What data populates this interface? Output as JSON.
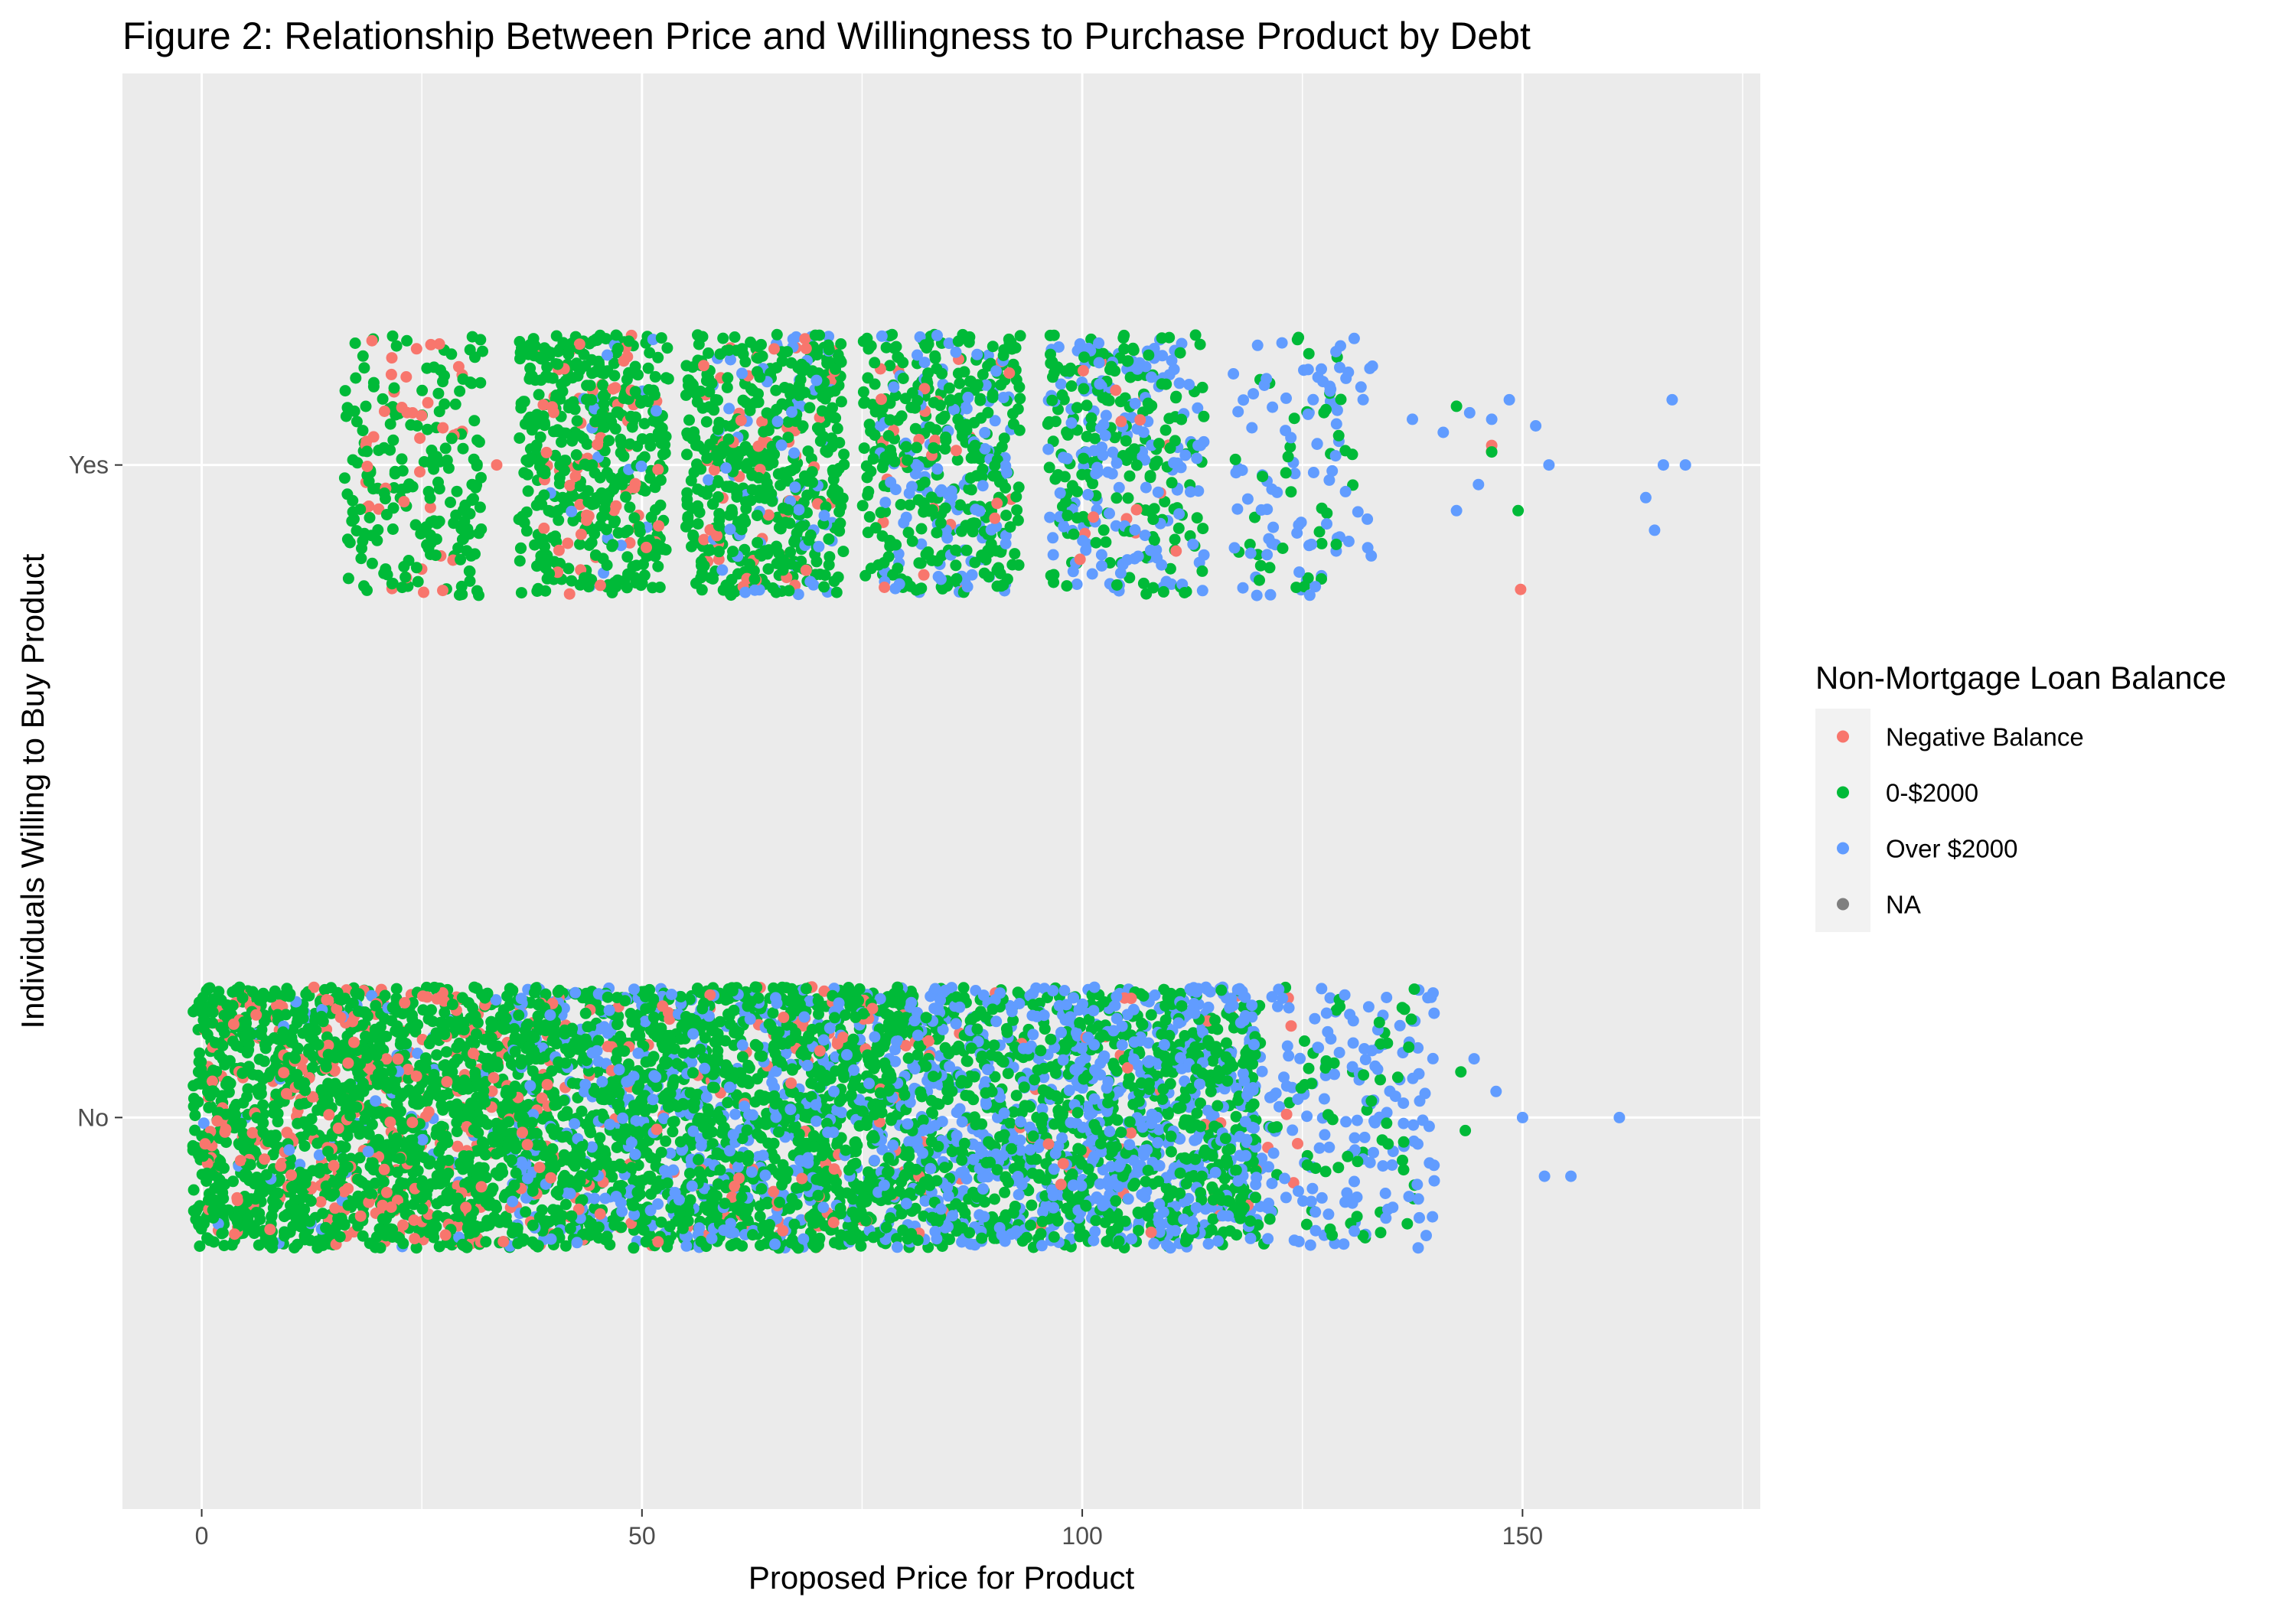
{
  "chart_data": {
    "type": "scatter",
    "title": "Figure 2: Relationship Between Price and Willingness to Purchase Product by Debt",
    "xlabel": "Proposed Price for Product",
    "ylabel": "Individuals Willing to Buy Product",
    "x_ticks": [
      "0",
      "50",
      "100",
      "150"
    ],
    "x_tick_values": [
      0,
      50,
      100,
      150
    ],
    "xlim": [
      -9,
      177
    ],
    "y_categories": [
      "No",
      "Yes"
    ],
    "grid": true,
    "jitter": 0.2,
    "legend": {
      "title": "Non-Mortgage Loan Balance",
      "placement": "right",
      "entries": [
        "Negative Balance",
        "0-$2000",
        "Over $2000",
        "NA"
      ]
    },
    "colors": {
      "Negative Balance": "#F8766D",
      "0-$2000": "#00BA38",
      "Over $2000": "#619CFF",
      "NA": "#7F7F7F",
      "panel": "#EBEBEB",
      "grid": "#FFFFFF"
    },
    "series": [
      {
        "name": "Negative Balance",
        "color": "#F8766D",
        "groups": [
          {
            "y": "No",
            "xmin": 0,
            "xmax": 40,
            "n": 320
          },
          {
            "y": "No",
            "xmin": 40,
            "xmax": 80,
            "n": 120
          },
          {
            "y": "No",
            "xmin": 80,
            "xmax": 125,
            "n": 55
          },
          {
            "y": "Yes",
            "xmin": 18,
            "xmax": 30,
            "n": 40
          },
          {
            "y": "Yes",
            "xmin": 38,
            "xmax": 52,
            "n": 70
          },
          {
            "y": "Yes",
            "xmin": 57,
            "xmax": 72,
            "n": 55
          },
          {
            "y": "Yes",
            "xmin": 77,
            "xmax": 92,
            "n": 30
          },
          {
            "y": "Yes",
            "xmin": 97,
            "xmax": 112,
            "n": 15
          },
          {
            "y": "Yes",
            "xmin": 140,
            "xmax": 150,
            "n": 2
          }
        ],
        "points": [
          {
            "x": 33.5,
            "y": "Yes",
            "dy": 0.0
          },
          {
            "x": 146.5,
            "y": "Yes",
            "dy": 0.03
          },
          {
            "x": 124,
            "y": "No",
            "dy": -0.1
          }
        ]
      },
      {
        "name": "0-$2000",
        "color": "#00BA38",
        "groups": [
          {
            "y": "No",
            "xmin": -1,
            "xmax": 40,
            "n": 1500
          },
          {
            "y": "No",
            "xmin": 40,
            "xmax": 80,
            "n": 1300
          },
          {
            "y": "No",
            "xmin": 80,
            "xmax": 120,
            "n": 900
          },
          {
            "y": "No",
            "xmin": 118,
            "xmax": 138,
            "n": 70
          },
          {
            "y": "Yes",
            "xmin": 16,
            "xmax": 32,
            "n": 190
          },
          {
            "y": "Yes",
            "xmin": 36,
            "xmax": 53,
            "n": 420
          },
          {
            "y": "Yes",
            "xmin": 55,
            "xmax": 73,
            "n": 440
          },
          {
            "y": "Yes",
            "xmin": 75,
            "xmax": 93,
            "n": 340
          },
          {
            "y": "Yes",
            "xmin": 96,
            "xmax": 114,
            "n": 200
          },
          {
            "y": "Yes",
            "xmin": 117,
            "xmax": 131,
            "n": 40
          }
        ],
        "points": [
          {
            "x": 142.5,
            "y": "Yes",
            "dy": 0.09
          },
          {
            "x": 146.5,
            "y": "Yes",
            "dy": 0.02
          },
          {
            "x": 149.5,
            "y": "Yes",
            "dy": -0.07
          },
          {
            "x": 143.5,
            "y": "No",
            "dy": -0.02
          },
          {
            "x": 143.0,
            "y": "No",
            "dy": 0.07
          },
          {
            "x": 136.5,
            "y": "No",
            "dy": -0.08
          }
        ]
      },
      {
        "name": "Over $2000",
        "color": "#619CFF",
        "groups": [
          {
            "y": "No",
            "xmin": 0,
            "xmax": 35,
            "n": 60
          },
          {
            "y": "No",
            "xmin": 35,
            "xmax": 80,
            "n": 520
          },
          {
            "y": "No",
            "xmin": 80,
            "xmax": 120,
            "n": 750
          },
          {
            "y": "No",
            "xmin": 118,
            "xmax": 140,
            "n": 170
          },
          {
            "y": "Yes",
            "xmin": 38,
            "xmax": 52,
            "n": 20
          },
          {
            "y": "Yes",
            "xmin": 57,
            "xmax": 72,
            "n": 70
          },
          {
            "y": "Yes",
            "xmin": 77,
            "xmax": 92,
            "n": 120
          },
          {
            "y": "Yes",
            "xmin": 96,
            "xmax": 114,
            "n": 170
          },
          {
            "y": "Yes",
            "xmin": 117,
            "xmax": 133,
            "n": 90
          }
        ],
        "points": [
          {
            "x": 137.5,
            "y": "Yes",
            "dy": 0.07
          },
          {
            "x": 141.0,
            "y": "Yes",
            "dy": 0.05
          },
          {
            "x": 142.5,
            "y": "Yes",
            "dy": -0.07
          },
          {
            "x": 144.0,
            "y": "Yes",
            "dy": 0.08
          },
          {
            "x": 145.0,
            "y": "Yes",
            "dy": -0.03
          },
          {
            "x": 146.5,
            "y": "Yes",
            "dy": 0.07
          },
          {
            "x": 148.5,
            "y": "Yes",
            "dy": 0.1
          },
          {
            "x": 151.5,
            "y": "Yes",
            "dy": 0.06
          },
          {
            "x": 153.0,
            "y": "Yes",
            "dy": 0.0
          },
          {
            "x": 164.0,
            "y": "Yes",
            "dy": -0.05
          },
          {
            "x": 165.0,
            "y": "Yes",
            "dy": -0.1
          },
          {
            "x": 166.0,
            "y": "Yes",
            "dy": 0.0
          },
          {
            "x": 167.0,
            "y": "Yes",
            "dy": 0.1
          },
          {
            "x": 168.5,
            "y": "Yes",
            "dy": 0.0
          },
          {
            "x": 144.5,
            "y": "No",
            "dy": 0.09
          },
          {
            "x": 147.0,
            "y": "No",
            "dy": 0.04
          },
          {
            "x": 150.0,
            "y": "No",
            "dy": 0.0
          },
          {
            "x": 152.5,
            "y": "No",
            "dy": -0.09
          },
          {
            "x": 155.5,
            "y": "No",
            "dy": -0.09
          },
          {
            "x": 161.0,
            "y": "No",
            "dy": 0.0
          }
        ]
      }
    ]
  }
}
